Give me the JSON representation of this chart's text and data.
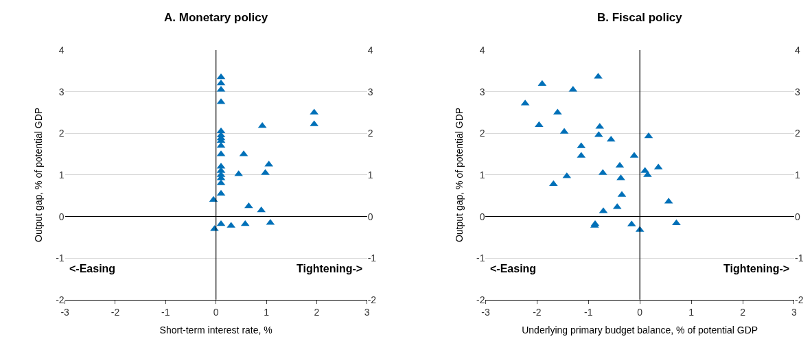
{
  "chart_data": [
    {
      "type": "scatter",
      "title": "A. Monetary policy",
      "xlabel": "Short-term interest rate, %",
      "ylabel": "Output gap, % of potential GDP",
      "marker": "triangle",
      "grid": "y",
      "series": [
        {
          "color": "#0070b8",
          "x": [
            0.1,
            0.1,
            0.1,
            0.1,
            0.1,
            0.1,
            0.1,
            0.1,
            0.1,
            0.1,
            0.1,
            0.1,
            0.1,
            0.1,
            0.1,
            0.1,
            -0.05,
            0.92,
            1.95,
            1.95,
            0.55,
            0.45,
            1.05,
            0.98,
            0.65,
            0.9,
            0.1,
            0.3,
            0.58,
            1.08,
            -0.03
          ],
          "values": [
            3.35,
            3.2,
            3.05,
            2.75,
            2.05,
            1.95,
            1.88,
            1.82,
            1.7,
            1.5,
            1.2,
            1.1,
            1.0,
            0.92,
            0.8,
            0.55,
            0.4,
            2.18,
            2.5,
            2.22,
            1.5,
            1.02,
            1.25,
            1.05,
            0.25,
            0.15,
            -0.18,
            -0.22,
            -0.18,
            -0.15,
            -0.3
          ]
        }
      ],
      "xlim": [
        -3,
        3
      ],
      "xticks": [
        -3,
        -2,
        -1,
        0,
        1,
        2,
        3
      ],
      "ylim": [
        -2,
        4
      ],
      "yticks": [
        -2,
        -1,
        0,
        1,
        2,
        3,
        4
      ],
      "y2lim": [
        -2,
        4
      ],
      "y2ticks": [
        -2,
        -1,
        0,
        1,
        2,
        3,
        4
      ],
      "ref_lines": [
        {
          "axis": "x",
          "value": 0,
          "color": "#000000"
        }
      ],
      "annotations": [
        "<-Easing",
        "Tightening->"
      ]
    },
    {
      "type": "scatter",
      "title": "B. Fiscal policy",
      "xlabel": "Underlying primary budget balance, % of potential GDP",
      "ylabel": "Output gap, % of potential GDP",
      "marker": "triangle",
      "grid": "y",
      "series": [
        {
          "color": "#0070b8",
          "x": [
            -0.81,
            -1.9,
            -1.3,
            -2.23,
            -1.6,
            -1.96,
            -0.78,
            -1.47,
            -0.8,
            0.17,
            -0.56,
            -1.14,
            -1.14,
            -0.11,
            -0.39,
            0.36,
            0.1,
            0.15,
            -1.42,
            -0.72,
            -0.37,
            -1.68,
            -0.35,
            0.56,
            -0.44,
            -0.71,
            -0.87,
            -0.88,
            -0.16,
            0.0,
            0.71
          ],
          "values": [
            3.36,
            3.19,
            3.05,
            2.72,
            2.5,
            2.2,
            2.16,
            2.04,
            1.96,
            1.93,
            1.85,
            1.69,
            1.46,
            1.46,
            1.22,
            1.18,
            1.1,
            1.0,
            0.97,
            1.05,
            0.92,
            0.78,
            0.52,
            0.36,
            0.23,
            0.13,
            -0.18,
            -0.22,
            -0.19,
            -0.32,
            -0.16
          ]
        }
      ],
      "xlim": [
        -3,
        3
      ],
      "xticks": [
        -3,
        -2,
        -1,
        0,
        1,
        2,
        3
      ],
      "ylim": [
        -2,
        4
      ],
      "yticks": [
        -2,
        -1,
        0,
        1,
        2,
        3,
        4
      ],
      "y2lim": [
        -2,
        4
      ],
      "y2ticks": [
        -2,
        -1,
        0,
        1,
        2,
        3,
        4
      ],
      "ref_lines": [
        {
          "axis": "x",
          "value": 0,
          "color": "#000000"
        }
      ],
      "annotations": [
        "<-Easing",
        "Tightening->"
      ]
    }
  ]
}
